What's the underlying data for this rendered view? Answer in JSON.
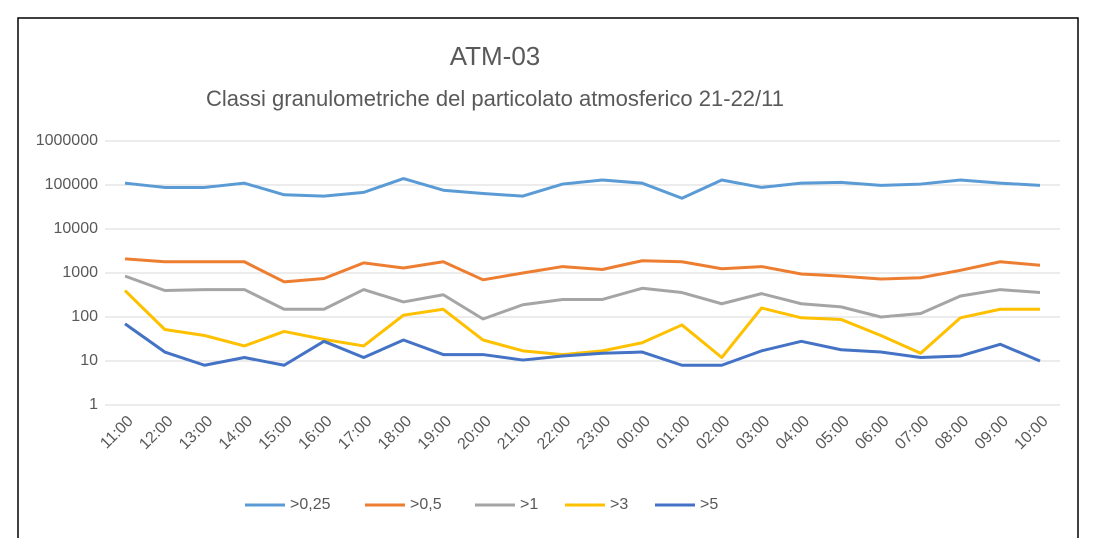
{
  "chart_data": {
    "type": "line",
    "title": "ATM-03",
    "subtitle": "Classi granulometriche del particolato atmosferico 21-22/11",
    "categories": [
      "11:00",
      "12:00",
      "13:00",
      "14:00",
      "15:00",
      "16:00",
      "17:00",
      "18:00",
      "19:00",
      "20:00",
      "21:00",
      "22:00",
      "23:00",
      "00:00",
      "01:00",
      "02:00",
      "03:00",
      "04:00",
      "05:00",
      "06:00",
      "07:00",
      "08:00",
      "09:00",
      "10:00"
    ],
    "series": [
      {
        "name": ">0,25",
        "color": "#5b9bd5",
        "values": [
          110000,
          88000,
          88000,
          110000,
          60000,
          56000,
          68000,
          140000,
          76000,
          64000,
          56000,
          105000,
          130000,
          110000,
          50000,
          130000,
          88000,
          110000,
          115000,
          98000,
          105000,
          130000,
          110000,
          98000
        ]
      },
      {
        "name": ">0,5",
        "color": "#ed7d31",
        "values": [
          2100,
          1800,
          1800,
          1800,
          630,
          750,
          1700,
          1300,
          1800,
          700,
          1000,
          1400,
          1200,
          1900,
          1800,
          1250,
          1400,
          950,
          850,
          730,
          780,
          1150,
          1800,
          1500
        ]
      },
      {
        "name": ">1",
        "color": "#a5a5a5",
        "values": [
          850,
          400,
          420,
          420,
          150,
          150,
          420,
          220,
          320,
          90,
          190,
          250,
          250,
          450,
          360,
          200,
          340,
          200,
          170,
          100,
          120,
          300,
          420,
          360
        ]
      },
      {
        "name": ">3",
        "color": "#ffc000",
        "values": [
          400,
          52,
          38,
          22,
          47,
          31,
          22,
          110,
          150,
          30,
          17,
          14,
          17,
          26,
          66,
          12,
          160,
          96,
          88,
          38,
          15,
          96,
          150,
          150
        ]
      },
      {
        "name": ">5",
        "color": "#4472c4",
        "values": [
          70,
          16,
          8,
          12,
          8,
          28,
          12,
          30,
          14,
          14,
          10.5,
          13,
          15,
          16,
          8,
          8,
          17,
          28,
          18,
          16,
          12,
          13,
          24,
          10
        ]
      }
    ],
    "ylim": [
      1,
      1000000
    ],
    "yticks": [
      1,
      10,
      100,
      1000,
      10000,
      100000,
      1000000
    ],
    "log_scale": true,
    "grid": true,
    "legend": "bottom"
  }
}
